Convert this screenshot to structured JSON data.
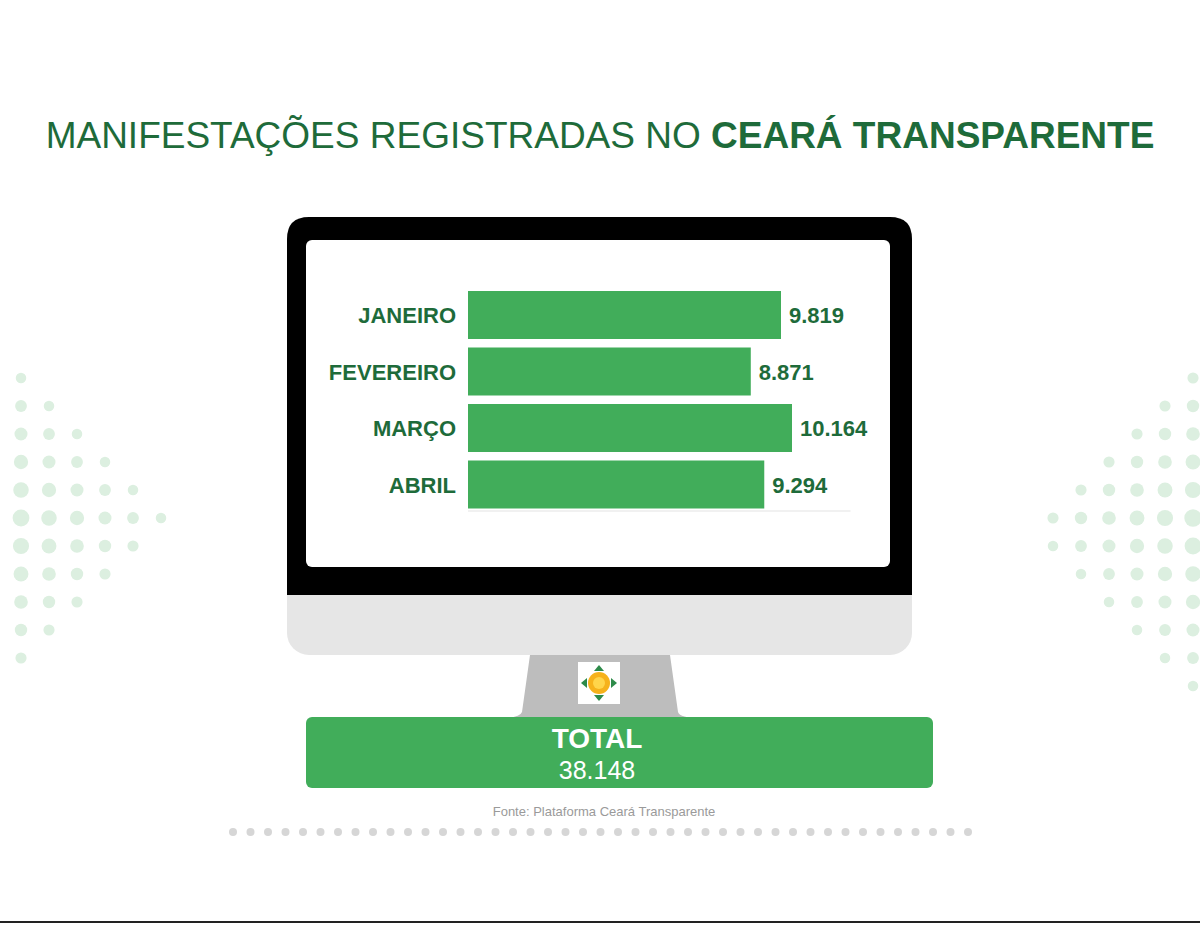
{
  "chart_data": {
    "type": "bar",
    "title": "MANIFESTAÇÕES REGISTRADAS NO CEARÁ TRANSPARENTE",
    "orientation": "horizontal",
    "categories": [
      "JANEIRO",
      "FEVEREIRO",
      "MARÇO",
      "ABRIL"
    ],
    "values": [
      9819,
      8871,
      10164,
      9294
    ],
    "value_labels": [
      "9.819",
      "8.871",
      "10.164",
      "9.294"
    ],
    "color": "#41ad5a",
    "xlim": [
      0,
      12000
    ],
    "data_labels": true,
    "tick_labels": "y",
    "grid": false
  },
  "title_emphasis": "CEARÁ TRANSPARENTE",
  "total": {
    "label": "TOTAL",
    "text": "38.148"
  },
  "source": "Fonte: Plataforma Ceará Transparente"
}
